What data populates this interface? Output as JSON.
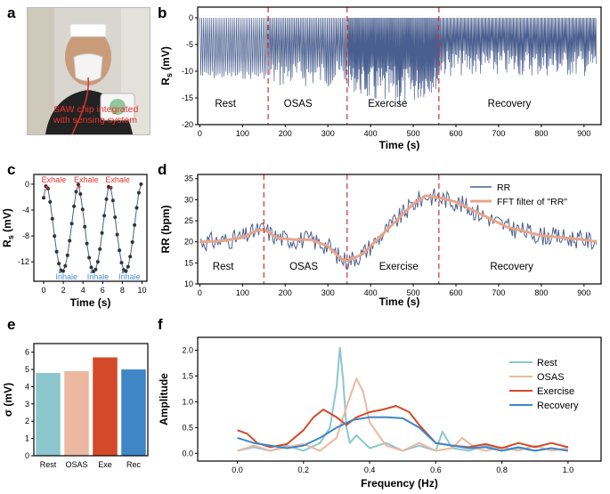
{
  "panel_letters": {
    "a": "a",
    "b": "b",
    "c": "c",
    "d": "d",
    "e": "e",
    "f": "f"
  },
  "photo": {
    "caption_line1": "SAW chip integrated",
    "caption_line2": "with sensing system"
  },
  "colors": {
    "signal": "#4a5f8f",
    "dash": "#d03030",
    "rr_smooth": "#e8a58a",
    "rest": "#8cc7cf",
    "osas": "#ecb89f",
    "exercise": "#d24a2a",
    "recovery": "#3f86c6",
    "label_red": "#e8322f",
    "inhale_blue": "#4a8fd6"
  },
  "chart_data": [
    {
      "id": "b",
      "type": "line",
      "ylabel": "R_s (mV)",
      "xlabel": "Time (s)",
      "xlim": [
        -5,
        940
      ],
      "ylim": [
        -20,
        2
      ],
      "xticks": [
        0,
        100,
        200,
        300,
        400,
        500,
        600,
        700,
        800,
        900
      ],
      "yticks": [
        0,
        -5,
        -10,
        -15,
        -20
      ],
      "region_boundaries": [
        160,
        345,
        560
      ],
      "regions": [
        {
          "name": "Rest",
          "x": 60
        },
        {
          "name": "OSAS",
          "x": 230
        },
        {
          "name": "Exercise",
          "x": 440
        },
        {
          "name": "Recovery",
          "x": 725
        }
      ],
      "series": [
        {
          "name": "R_s",
          "description": "oscillating respiration signal between ~0 and ~-10 to -17 mV"
        }
      ]
    },
    {
      "id": "c",
      "type": "line",
      "ylabel": "R_s (mV)",
      "xlabel": "Time (s)",
      "xlim": [
        -1,
        10.5
      ],
      "ylim": [
        -15,
        1.5
      ],
      "xticks": [
        0,
        2,
        4,
        6,
        8,
        10
      ],
      "yticks": [
        0,
        -4,
        -8,
        -12
      ],
      "exhale_times": [
        0.3,
        3.6,
        6.8
      ],
      "inhale_times": [
        1.6,
        4.8,
        8.0
      ],
      "exhale_label": "Exhale",
      "inhale_label": "Inhale",
      "period_s": 3.2,
      "min_mV": -13.5,
      "max_mV": 0
    },
    {
      "id": "d",
      "type": "line",
      "ylabel": "RR (bpm)",
      "xlabel": "Time (s)",
      "xlim": [
        -5,
        940
      ],
      "ylim": [
        10,
        36
      ],
      "xticks": [
        0,
        100,
        200,
        300,
        400,
        500,
        600,
        700,
        800,
        900
      ],
      "yticks": [
        10,
        15,
        20,
        25,
        30,
        35
      ],
      "region_boundaries": [
        150,
        345,
        560
      ],
      "regions": [
        {
          "name": "Rest",
          "x": 30
        },
        {
          "name": "OSAS",
          "x": 210
        },
        {
          "name": "Exercise",
          "x": 420
        },
        {
          "name": "Recovery",
          "x": 680
        }
      ],
      "legend": [
        {
          "name": "RR"
        },
        {
          "name": "FFT filter of \"RR\""
        }
      ],
      "smooth": {
        "x": [
          0,
          50,
          100,
          130,
          150,
          180,
          220,
          260,
          300,
          330,
          345,
          380,
          420,
          460,
          500,
          530,
          560,
          600,
          640,
          680,
          720,
          760,
          800,
          850,
          900,
          930
        ],
        "y": [
          20,
          20.2,
          21,
          22.5,
          23,
          21,
          20.5,
          20.5,
          19,
          16,
          15.5,
          17,
          21,
          25,
          29,
          31,
          30.5,
          29.5,
          27.5,
          25.5,
          23.5,
          22.5,
          21.5,
          21,
          20.5,
          20
        ]
      }
    },
    {
      "id": "e",
      "type": "bar",
      "ylabel": "σ (mV)",
      "categories": [
        "Rest",
        "OSAS",
        "Exe",
        "Rec"
      ],
      "values": [
        4.8,
        4.9,
        5.7,
        5.0
      ],
      "ylim": [
        0,
        6.5
      ],
      "yticks": [
        0,
        1,
        2,
        3,
        4,
        5,
        6
      ]
    },
    {
      "id": "f",
      "type": "line",
      "ylabel": "Amplitude",
      "xlabel": "Frequency (Hz)",
      "xlim": [
        -0.12,
        1.1
      ],
      "ylim": [
        -0.15,
        2.25
      ],
      "xticks": [
        0.0,
        0.2,
        0.4,
        0.6,
        0.8,
        1.0
      ],
      "xtick_labels": [
        "0.0",
        "0.2",
        "0.4",
        "0.6",
        "0.8",
        "1.0"
      ],
      "yticks": [
        0.0,
        0.5,
        1.0,
        1.5,
        2.0
      ],
      "ytick_labels": [
        "0.0",
        "0.5",
        "1.0",
        "1.5",
        "2.0"
      ],
      "series": [
        {
          "name": "Rest",
          "x": [
            0,
            0.05,
            0.1,
            0.15,
            0.2,
            0.25,
            0.28,
            0.3,
            0.31,
            0.32,
            0.33,
            0.34,
            0.36,
            0.4,
            0.45,
            0.5,
            0.55,
            0.6,
            0.62,
            0.65,
            0.7,
            0.75,
            0.8,
            0.85,
            0.9,
            0.95,
            1.0
          ],
          "y": [
            0.05,
            0.12,
            0.05,
            0.15,
            0.05,
            0.2,
            0.5,
            1.3,
            2.05,
            1.4,
            0.5,
            0.2,
            0.35,
            0.1,
            0.2,
            0.05,
            0.15,
            0.05,
            0.42,
            0.1,
            0.05,
            0.15,
            0.05,
            0.1,
            0.05,
            0.1,
            0.05
          ]
        },
        {
          "name": "OSAS",
          "x": [
            0,
            0.05,
            0.1,
            0.15,
            0.2,
            0.25,
            0.3,
            0.33,
            0.36,
            0.38,
            0.4,
            0.45,
            0.5,
            0.55,
            0.6,
            0.65,
            0.68,
            0.72,
            0.75,
            0.8,
            0.85,
            0.9,
            0.95,
            1.0
          ],
          "y": [
            0.05,
            0.15,
            0.05,
            0.12,
            0.18,
            0.05,
            0.3,
            0.9,
            1.45,
            1.2,
            0.6,
            0.15,
            0.05,
            0.2,
            0.05,
            0.1,
            0.3,
            0.1,
            0.05,
            0.12,
            0.05,
            0.15,
            0.05,
            0.1
          ]
        },
        {
          "name": "Exercise",
          "x": [
            0,
            0.03,
            0.06,
            0.1,
            0.15,
            0.2,
            0.23,
            0.26,
            0.3,
            0.33,
            0.36,
            0.4,
            0.44,
            0.48,
            0.52,
            0.55,
            0.6,
            0.65,
            0.7,
            0.75,
            0.8,
            0.85,
            0.9,
            0.95,
            1.0
          ],
          "y": [
            0.45,
            0.38,
            0.2,
            0.12,
            0.18,
            0.45,
            0.7,
            0.85,
            0.7,
            0.55,
            0.7,
            0.8,
            0.85,
            0.92,
            0.8,
            0.55,
            0.2,
            0.15,
            0.12,
            0.18,
            0.1,
            0.2,
            0.12,
            0.2,
            0.12
          ]
        },
        {
          "name": "Recovery",
          "x": [
            0,
            0.05,
            0.1,
            0.15,
            0.2,
            0.25,
            0.3,
            0.35,
            0.4,
            0.45,
            0.5,
            0.55,
            0.6,
            0.65,
            0.7,
            0.75,
            0.8,
            0.85,
            0.9,
            0.95,
            1.0
          ],
          "y": [
            0.3,
            0.2,
            0.15,
            0.1,
            0.15,
            0.3,
            0.5,
            0.65,
            0.7,
            0.7,
            0.68,
            0.5,
            0.2,
            0.15,
            0.1,
            0.12,
            0.05,
            0.12,
            0.05,
            0.1,
            0.05
          ]
        }
      ]
    }
  ]
}
